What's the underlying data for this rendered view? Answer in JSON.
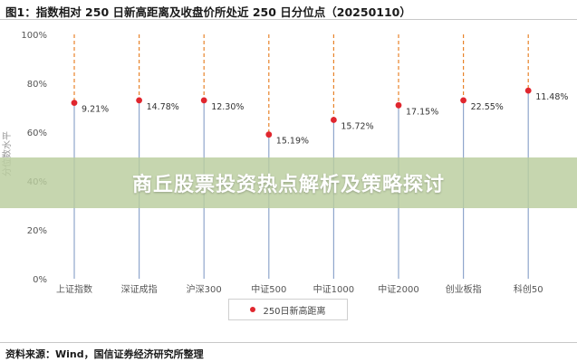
{
  "figure": {
    "title": "图1：指数相对 250 日新高距离及收盘价所处近 250 日分位点（20250110）",
    "source": "资料来源：Wind，国信证券经济研究所整理"
  },
  "banner": {
    "text": "商丘股票投资热点解析及策略探讨"
  },
  "legend": {
    "label": "250日新高距离"
  },
  "colors": {
    "marker": "#e0262e",
    "dashed_line": "#e8832a",
    "solid_line": "#8fa6cc",
    "axis_text": "#555555"
  },
  "chart_data": {
    "type": "scatter",
    "ylabel": "分位数水平",
    "ylim": [
      0,
      100
    ],
    "yticks": [
      "0%",
      "20%",
      "40%",
      "60%",
      "80%",
      "100%"
    ],
    "grid": false,
    "categories": [
      "上证指数",
      "深证成指",
      "沪深300",
      "中证500",
      "中证1000",
      "中证2000",
      "创业板指",
      "科创50"
    ],
    "series": [
      {
        "name": "250日新高距离",
        "values": [
          72,
          73,
          73,
          59,
          65,
          71,
          73,
          77
        ],
        "labels": [
          "9.21%",
          "14.78%",
          "12.30%",
          "15.19%",
          "15.72%",
          "17.15%",
          "22.55%",
          "11.48%"
        ]
      }
    ]
  }
}
